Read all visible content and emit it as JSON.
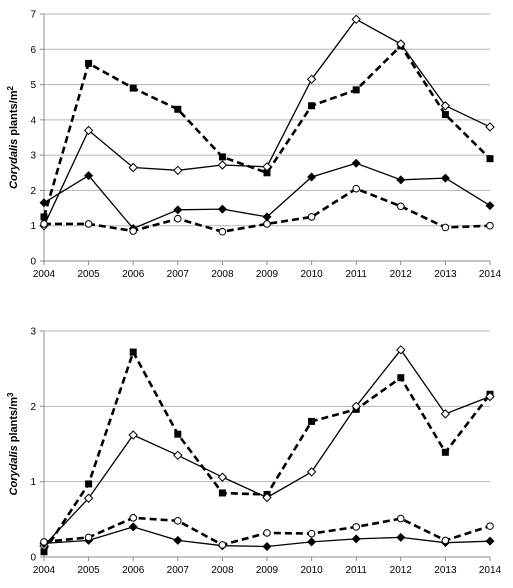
{
  "chart_data": [
    {
      "type": "line",
      "ylabel": {
        "italic": "Corydalis",
        "rest": " plants/m",
        "sup": "2"
      },
      "x": [
        2004,
        2005,
        2006,
        2007,
        2008,
        2009,
        2010,
        2011,
        2012,
        2013,
        2014
      ],
      "x_tick_labels": [
        "2004",
        "2005",
        "2006",
        "2007",
        "2008",
        "2009",
        "2010",
        "2011",
        "2012",
        "2013",
        "2014"
      ],
      "ylim": [
        0,
        7
      ],
      "y_ticks": [
        0,
        1,
        2,
        3,
        4,
        5,
        6,
        7
      ],
      "y_tick_labels": [
        "0",
        "1",
        "2",
        "3",
        "4",
        "5",
        "6",
        "7"
      ],
      "grid": true,
      "series": [
        {
          "style": "dashed",
          "marker": "filled-square",
          "values": [
            1.25,
            5.6,
            4.9,
            4.3,
            2.95,
            2.5,
            4.4,
            4.85,
            6.1,
            4.15,
            2.9
          ]
        },
        {
          "style": "solid",
          "marker": "open-diamond",
          "values": [
            1.0,
            3.7,
            2.65,
            2.57,
            2.72,
            2.67,
            5.15,
            6.85,
            6.15,
            4.4,
            3.8
          ]
        },
        {
          "style": "solid",
          "marker": "filled-diamond",
          "values": [
            1.65,
            2.42,
            0.92,
            1.45,
            1.47,
            1.25,
            2.38,
            2.77,
            2.3,
            2.35,
            1.57
          ]
        },
        {
          "style": "dashed",
          "marker": "open-circle",
          "values": [
            1.05,
            1.05,
            0.85,
            1.2,
            0.83,
            1.05,
            1.25,
            2.05,
            1.55,
            0.95,
            1.0
          ]
        }
      ]
    },
    {
      "type": "line",
      "ylabel": {
        "italic": "Corydalis",
        "rest": " plants/m",
        "sup": "3"
      },
      "x": [
        2004,
        2005,
        2006,
        2007,
        2008,
        2009,
        2010,
        2011,
        2012,
        2013,
        2014
      ],
      "x_tick_labels": [
        "2004",
        "2005",
        "2006",
        "2007",
        "2008",
        "2009",
        "2010",
        "2011",
        "2012",
        "2013",
        "2014"
      ],
      "ylim": [
        0,
        3
      ],
      "y_ticks": [
        0,
        1,
        2,
        3
      ],
      "y_tick_labels": [
        "0",
        "1",
        "2",
        "3"
      ],
      "grid": true,
      "series": [
        {
          "style": "dashed",
          "marker": "filled-square",
          "values": [
            0.07,
            0.97,
            2.72,
            1.63,
            0.85,
            0.83,
            1.8,
            1.96,
            2.38,
            1.39,
            2.16
          ]
        },
        {
          "style": "solid",
          "marker": "open-diamond",
          "values": [
            0.15,
            0.78,
            1.62,
            1.35,
            1.06,
            0.79,
            1.13,
            2.0,
            2.75,
            1.9,
            2.13
          ]
        },
        {
          "style": "solid",
          "marker": "filled-diamond",
          "values": [
            0.18,
            0.22,
            0.4,
            0.22,
            0.15,
            0.14,
            0.2,
            0.24,
            0.26,
            0.19,
            0.21
          ]
        },
        {
          "style": "dashed",
          "marker": "open-circle",
          "values": [
            0.2,
            0.26,
            0.52,
            0.48,
            0.16,
            0.32,
            0.31,
            0.4,
            0.51,
            0.22,
            0.41
          ]
        }
      ]
    }
  ]
}
